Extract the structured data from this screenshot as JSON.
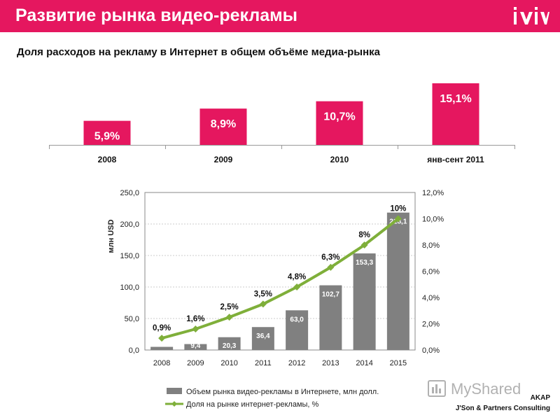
{
  "header": {
    "title": "Развитие рынка видео-рекламы",
    "logo_text": "ivi",
    "brand_color": "#e5175f"
  },
  "subtitle": "Доля расходов на рекламу в Интернет в общем объёме медиа-рынка",
  "footer": {
    "watermark": "MyShared",
    "source_line1": "AKAP",
    "source_line2": "J'Son & Partners Consulting"
  },
  "chart_data": [
    {
      "type": "bar",
      "categories": [
        "2008",
        "2009",
        "2010",
        "янв-сент 2011"
      ],
      "values": [
        5.9,
        8.9,
        10.7,
        15.1
      ],
      "data_labels": [
        "5,9%",
        "8,9%",
        "10,7%",
        "15,1%"
      ],
      "bar_color": "#e5175f",
      "grid": false
    },
    {
      "type": "bar+line",
      "categories": [
        "2008",
        "2009",
        "2010",
        "2011",
        "2012",
        "2013",
        "2014",
        "2015"
      ],
      "series": [
        {
          "name": "Объем рынка видео-рекламы в Интернете, млн долл.",
          "type": "bar",
          "axis": "left",
          "values": [
            5.0,
            9.4,
            20.3,
            36.4,
            63.0,
            102.7,
            153.3,
            218.1
          ],
          "labels": [
            "",
            "9,4",
            "20,3",
            "36,4",
            "63,0",
            "102,7",
            "153,3",
            "218,1"
          ],
          "color": "#808080"
        },
        {
          "name": "Доля на рынке интернет-рекламы, %",
          "type": "line",
          "axis": "right",
          "values": [
            0.9,
            1.6,
            2.5,
            3.5,
            4.8,
            6.3,
            8.0,
            10.0
          ],
          "labels": [
            "0,9%",
            "1,6%",
            "2,5%",
            "3,5%",
            "4,8%",
            "6,3%",
            "8%",
            "10%"
          ],
          "color": "#7faf3a"
        }
      ],
      "ylabel": "млн USD",
      "ylim": [
        0,
        250
      ],
      "y_ticks": [
        "0,0",
        "50,0",
        "100,0",
        "150,0",
        "200,0",
        "250,0"
      ],
      "y2lim": [
        0,
        12
      ],
      "y2_ticks": [
        "0,0%",
        "2,0%",
        "4,0%",
        "6,0%",
        "8,0%",
        "10,0%",
        "12,0%"
      ],
      "grid": true,
      "legend_position": "bottom"
    }
  ]
}
